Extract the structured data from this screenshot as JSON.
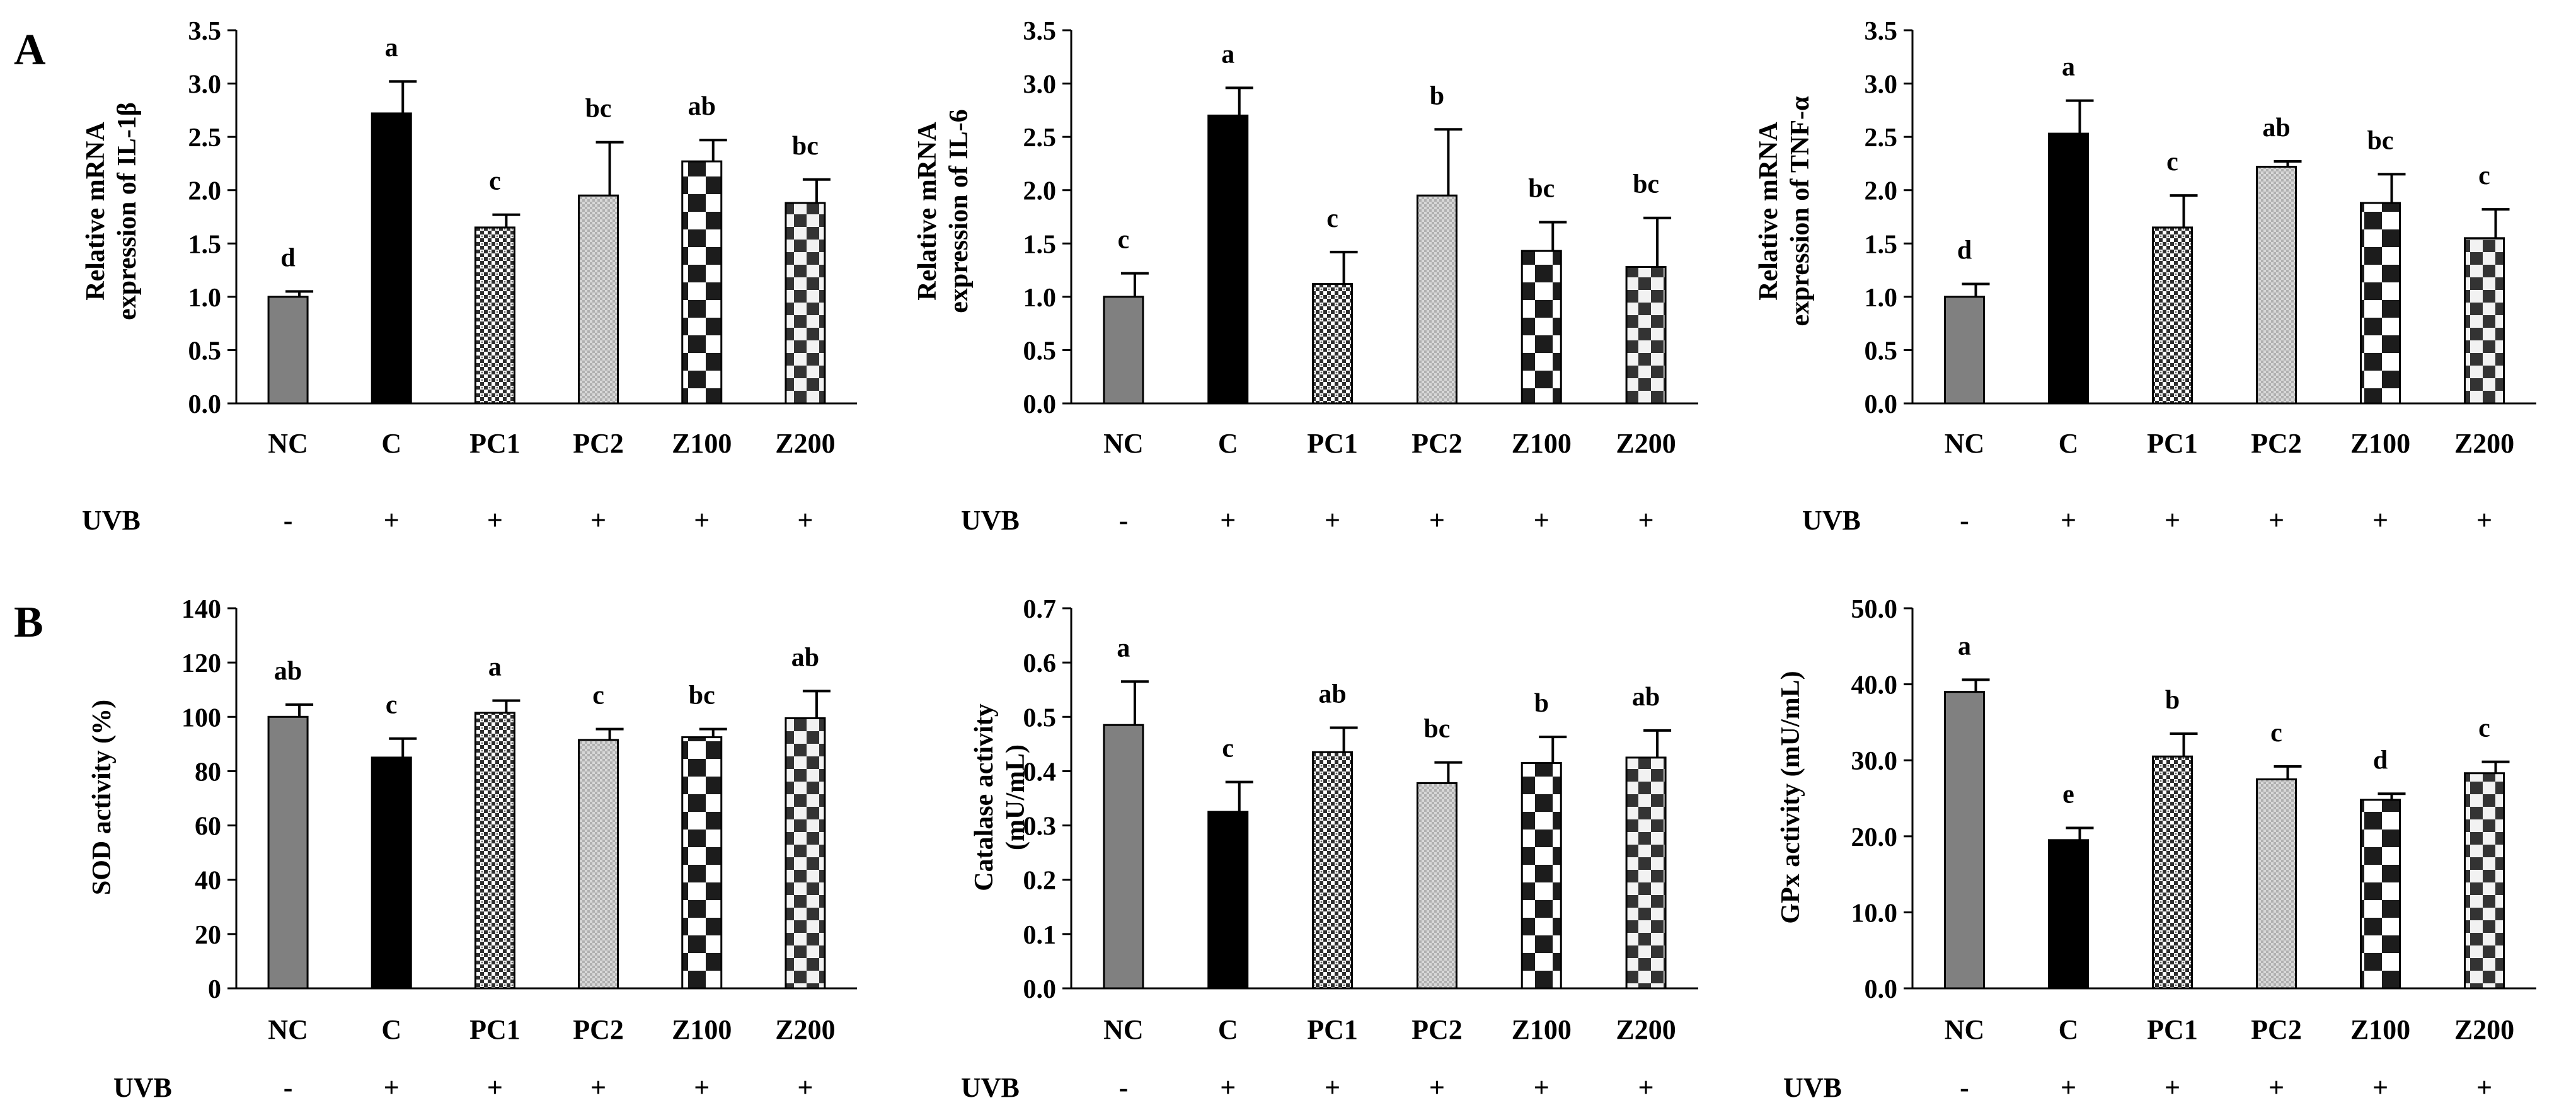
{
  "panel_labels": [
    "A",
    "B"
  ],
  "uvb": {
    "label": "UVB",
    "signs": [
      "-",
      "+",
      "+",
      "+",
      "+",
      "+"
    ]
  },
  "colors": {
    "NC": "#808080",
    "C": "#000000",
    "PC1": "#3a3a3a",
    "PC2": "#cfcfcf",
    "Z100": "#ffffff",
    "Z200": "#3c3c3c",
    "check": "#1c1c1c"
  },
  "chart_data": [
    {
      "type": "bar",
      "title": "",
      "ylabel": [
        "Relative mRNA",
        "expression of IL-1β"
      ],
      "xlabel": "",
      "categories": [
        "NC",
        "C",
        "PC1",
        "PC2",
        "Z100",
        "Z200"
      ],
      "values": [
        1.0,
        2.72,
        1.65,
        1.95,
        2.27,
        1.88
      ],
      "errors": [
        0.05,
        0.3,
        0.12,
        0.5,
        0.2,
        0.22
      ],
      "letters": [
        "d",
        "a",
        "c",
        "bc",
        "ab",
        "bc"
      ],
      "ylim": [
        0,
        3.5
      ],
      "yticks": [
        0,
        0.5,
        1.0,
        1.5,
        2.0,
        2.5,
        3.0,
        3.5
      ],
      "yticklabels": [
        "0.0",
        "0.5",
        "1.0",
        "1.5",
        "2.0",
        "2.5",
        "3.0",
        "3.5"
      ]
    },
    {
      "type": "bar",
      "title": "",
      "ylabel": [
        "Relative mRNA",
        "expression of IL-6"
      ],
      "xlabel": "",
      "categories": [
        "NC",
        "C",
        "PC1",
        "PC2",
        "Z100",
        "Z200"
      ],
      "values": [
        1.0,
        2.7,
        1.12,
        1.95,
        1.43,
        1.28
      ],
      "errors": [
        0.22,
        0.26,
        0.3,
        0.62,
        0.27,
        0.46
      ],
      "letters": [
        "c",
        "a",
        "c",
        "b",
        "bc",
        "bc"
      ],
      "ylim": [
        0,
        3.5
      ],
      "yticks": [
        0,
        0.5,
        1.0,
        1.5,
        2.0,
        2.5,
        3.0,
        3.5
      ],
      "yticklabels": [
        "0.0",
        "0.5",
        "1.0",
        "1.5",
        "2.0",
        "2.5",
        "3.0",
        "3.5"
      ]
    },
    {
      "type": "bar",
      "title": "",
      "ylabel": [
        "Relative mRNA",
        "expression of TNF-α"
      ],
      "xlabel": "",
      "categories": [
        "NC",
        "C",
        "PC1",
        "PC2",
        "Z100",
        "Z200"
      ],
      "values": [
        1.0,
        2.53,
        1.65,
        2.22,
        1.88,
        1.55
      ],
      "errors": [
        0.12,
        0.31,
        0.3,
        0.05,
        0.27,
        0.27
      ],
      "letters": [
        "d",
        "a",
        "c",
        "ab",
        "bc",
        "c"
      ],
      "ylim": [
        0,
        3.5
      ],
      "yticks": [
        0,
        0.5,
        1.0,
        1.5,
        2.0,
        2.5,
        3.0,
        3.5
      ],
      "yticklabels": [
        "0.0",
        "0.5",
        "1.0",
        "1.5",
        "2.0",
        "2.5",
        "3.0",
        "3.5"
      ]
    },
    {
      "type": "bar",
      "title": "",
      "ylabel": [
        "SOD activity (%)"
      ],
      "xlabel": "",
      "categories": [
        "NC",
        "C",
        "PC1",
        "PC2",
        "Z100",
        "Z200"
      ],
      "values": [
        100,
        85,
        101.5,
        91.5,
        92.5,
        99.5
      ],
      "errors": [
        4.5,
        7,
        4.5,
        4,
        3,
        10
      ],
      "letters": [
        "ab",
        "c",
        "a",
        "c",
        "bc",
        "ab"
      ],
      "ylim": [
        0,
        140
      ],
      "yticks": [
        0,
        20,
        40,
        60,
        80,
        100,
        120,
        140
      ],
      "yticklabels": [
        "0",
        "20",
        "40",
        "60",
        "80",
        "100",
        "120",
        "140"
      ]
    },
    {
      "type": "bar",
      "title": "",
      "ylabel": [
        "Catalase activity",
        "(mU/mL)"
      ],
      "xlabel": "",
      "categories": [
        "NC",
        "C",
        "PC1",
        "PC2",
        "Z100",
        "Z200"
      ],
      "values": [
        0.485,
        0.325,
        0.435,
        0.378,
        0.415,
        0.425
      ],
      "errors": [
        0.08,
        0.055,
        0.045,
        0.038,
        0.048,
        0.05
      ],
      "letters": [
        "a",
        "c",
        "ab",
        "bc",
        "b",
        "ab"
      ],
      "ylim": [
        0,
        0.7
      ],
      "yticks": [
        0,
        0.1,
        0.2,
        0.3,
        0.4,
        0.5,
        0.6,
        0.7
      ],
      "yticklabels": [
        "0.0",
        "0.1",
        "0.2",
        "0.3",
        "0.4",
        "0.5",
        "0.6",
        "0.7"
      ]
    },
    {
      "type": "bar",
      "title": "",
      "ylabel": [
        "GPx activity (mU/mL)"
      ],
      "xlabel": "",
      "categories": [
        "NC",
        "C",
        "PC1",
        "PC2",
        "Z100",
        "Z200"
      ],
      "values": [
        39.0,
        19.5,
        30.5,
        27.5,
        24.8,
        28.3
      ],
      "errors": [
        1.6,
        1.6,
        3.0,
        1.7,
        0.8,
        1.5
      ],
      "letters": [
        "a",
        "e",
        "b",
        "c",
        "d",
        "c"
      ],
      "ylim": [
        0,
        50
      ],
      "yticks": [
        0,
        10,
        20,
        30,
        40,
        50
      ],
      "yticklabels": [
        "0.0",
        "10.0",
        "20.0",
        "30.0",
        "40.0",
        "50.0"
      ]
    }
  ]
}
